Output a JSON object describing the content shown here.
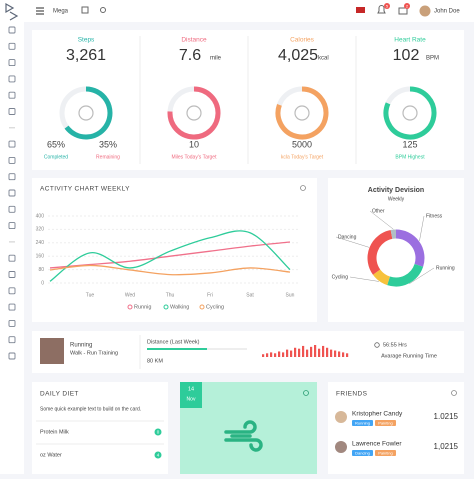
{
  "header": {
    "menu": "Mega",
    "user": "John Doe",
    "bell_badge": "5",
    "mail_badge": "2"
  },
  "stats": [
    {
      "title": "Steps",
      "value": "3,261",
      "completed": "65%",
      "remaining": "35%",
      "completed_label": "Completed",
      "remaining_label": "Remaining",
      "color": "#26b3a7"
    },
    {
      "title": "Distance",
      "value": "7.6",
      "unit": "mile",
      "target": "10",
      "target_label": "Miles Today's Target",
      "color": "#ef6a7f"
    },
    {
      "title": "Calories",
      "value": "4,025",
      "unit": "kcal",
      "target": "5000",
      "target_label": "kcla Today's Target",
      "color": "#f4a261"
    },
    {
      "title": "Heart Rate",
      "value": "102",
      "unit": "BPM",
      "target": "125",
      "target_label": "BPM Highest",
      "color": "#2ecc9a"
    }
  ],
  "activity_chart": {
    "title": "ACTIVITY CHART WEEKLY",
    "categories": [
      null,
      "Tue",
      "Wed",
      "Thu",
      "Fri",
      "Sat",
      "Sun"
    ],
    "ylim": [
      0,
      400
    ],
    "yticks": [
      0,
      80,
      160,
      240,
      320,
      400
    ],
    "series": [
      {
        "name": "Runnig",
        "color": "#f0708a",
        "values": [
          90,
          110,
          130,
          160,
          190,
          220,
          245
        ]
      },
      {
        "name": "Walking",
        "color": "#2ecc9a",
        "values": [
          10,
          180,
          90,
          190,
          270,
          300,
          80
        ]
      },
      {
        "name": "Cycling",
        "color": "#f4a261",
        "values": [
          78,
          105,
          78,
          50,
          60,
          90,
          65
        ]
      }
    ]
  },
  "activity_division": {
    "title": "Activity Devision",
    "subtitle": "Weekly",
    "segments": [
      {
        "name": "Fitness",
        "value": 30,
        "color": "#9b6fe0"
      },
      {
        "name": "Running",
        "value": 25,
        "color": "#2ecc9a"
      },
      {
        "name": "Cycling",
        "value": 10,
        "color": "#f7c23c"
      },
      {
        "name": "Dancing",
        "value": 32,
        "color": "#ef5350"
      },
      {
        "name": "Other",
        "value": 3,
        "color": "#b0bec5"
      }
    ]
  },
  "running": {
    "title": "Running",
    "subtitle": "Walk - Run Training",
    "distance_label": "Distance (Last Week)",
    "distance": "80 KM",
    "time": "56:55 Hrs",
    "time_label": "Avarage Running Time",
    "bars": [
      3,
      4,
      5,
      4,
      6,
      5,
      8,
      7,
      10,
      9,
      12,
      8,
      11,
      13,
      9,
      12,
      10,
      8,
      7,
      6,
      5,
      4
    ]
  },
  "daily_diet": {
    "title": "DAILY DIET",
    "text": "Some quick example text to build on the card.",
    "items": [
      {
        "name": "Protein Milk",
        "count": "0"
      },
      {
        "name": "oz Water",
        "count": "4"
      }
    ]
  },
  "date_card": {
    "day": "14",
    "month": "Nov"
  },
  "friends": {
    "title": "FRIENDS",
    "items": [
      {
        "name": "Kristopher Candy",
        "tags": [
          "Running",
          "Painting"
        ],
        "value": "1.0215"
      },
      {
        "name": "Lawrence Fowler",
        "tags": [
          "Dancing",
          "Painting"
        ],
        "value": "1,0215"
      }
    ]
  }
}
